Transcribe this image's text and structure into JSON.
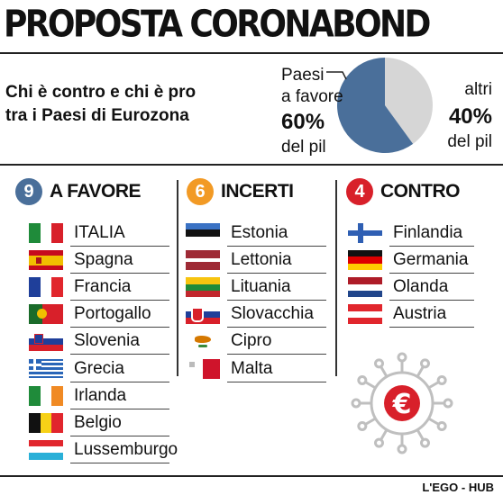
{
  "header": {
    "title": "PROPOSTA CORONABOND",
    "subtitle_line1": "Chi è contro e chi è pro",
    "subtitle_line2": "tra i Paesi di Eurozona"
  },
  "chart_data": {
    "type": "pie",
    "slices": [
      {
        "label_line1": "Paesi",
        "label_line2": "a favore",
        "value": 60,
        "value_text": "60%",
        "unit_text": "del pil",
        "color": "#4a6f9a"
      },
      {
        "label_line1": "altri",
        "label_line2": "",
        "value": 40,
        "value_text": "40%",
        "unit_text": "del pil",
        "color": "#d6d6d6"
      }
    ]
  },
  "columns": [
    {
      "count": "9",
      "heading": "A FAVORE",
      "badge_color": "#4a6f9a",
      "countries": [
        "ITALIA",
        "Spagna",
        "Francia",
        "Portogallo",
        "Slovenia",
        "Grecia",
        "Irlanda",
        "Belgio",
        "Lussemburgo"
      ]
    },
    {
      "count": "6",
      "heading": "INCERTI",
      "badge_color": "#f29a25",
      "countries": [
        "Estonia",
        "Lettonia",
        "Lituania",
        "Slovacchia",
        "Cipro",
        "Malta"
      ]
    },
    {
      "count": "4",
      "heading": "CONTRO",
      "badge_color": "#d8202a",
      "countries": [
        "Finlandia",
        "Germania",
        "Olanda",
        "Austria"
      ]
    }
  ],
  "illustration": {
    "icon": "virus-euro-icon",
    "symbol": "€",
    "color": "#d8202a"
  },
  "credit": "L'EGO - HUB"
}
